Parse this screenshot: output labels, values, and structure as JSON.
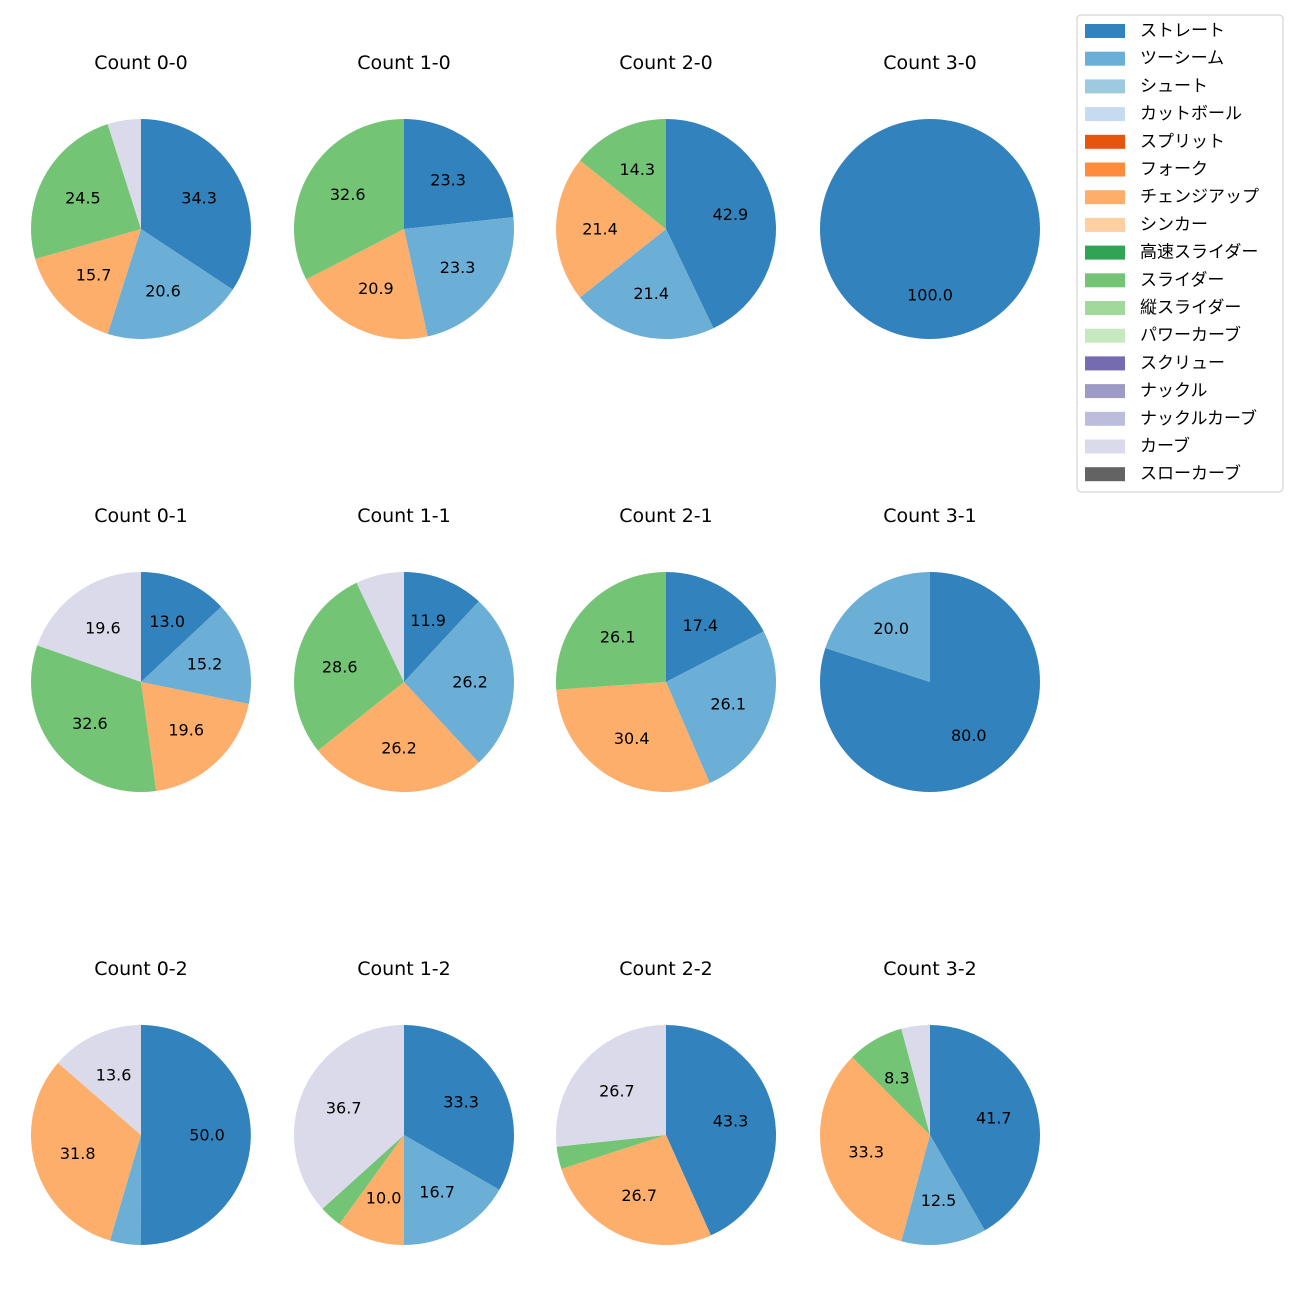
{
  "colors": {
    "ストレート": "#3182bd",
    "ツーシーム": "#6baed6",
    "シュート": "#9ecae1",
    "カットボール": "#c6dbef",
    "スプリット": "#e6550d",
    "フォーク": "#fd8d3c",
    "チェンジアップ": "#fdae6b",
    "シンカー": "#fdd0a2",
    "高速スライダー": "#31a354",
    "スライダー": "#74c476",
    "縦スライダー": "#a1d99b",
    "パワーカーブ": "#c7e9c0",
    "スクリュー": "#756bb1",
    "ナックル": "#9e9ac8",
    "ナックルカーブ": "#bcbddc",
    "カーブ": "#dadaeb",
    "スローカーブ": "#636363"
  },
  "legend": [
    "ストレート",
    "ツーシーム",
    "シュート",
    "カットボール",
    "スプリット",
    "フォーク",
    "チェンジアップ",
    "シンカー",
    "高速スライダー",
    "スライダー",
    "縦スライダー",
    "パワーカーブ",
    "スクリュー",
    "ナックル",
    "ナックルカーブ",
    "カーブ",
    "スローカーブ"
  ],
  "chart_data": [
    {
      "type": "pie",
      "title": "Count 0-0",
      "slices": [
        {
          "name": "ストレート",
          "value": 34.3,
          "label": "34.3"
        },
        {
          "name": "ツーシーム",
          "value": 20.6,
          "label": "20.6"
        },
        {
          "name": "チェンジアップ",
          "value": 15.7,
          "label": "15.7"
        },
        {
          "name": "スライダー",
          "value": 24.5,
          "label": "24.5"
        },
        {
          "name": "カーブ",
          "value": 4.9,
          "label": ""
        }
      ]
    },
    {
      "type": "pie",
      "title": "Count 1-0",
      "slices": [
        {
          "name": "ストレート",
          "value": 23.3,
          "label": "23.3"
        },
        {
          "name": "ツーシーム",
          "value": 23.3,
          "label": "23.3"
        },
        {
          "name": "チェンジアップ",
          "value": 20.9,
          "label": "20.9"
        },
        {
          "name": "スライダー",
          "value": 32.6,
          "label": "32.6"
        }
      ]
    },
    {
      "type": "pie",
      "title": "Count 2-0",
      "slices": [
        {
          "name": "ストレート",
          "value": 42.9,
          "label": "42.9"
        },
        {
          "name": "ツーシーム",
          "value": 21.4,
          "label": "21.4"
        },
        {
          "name": "チェンジアップ",
          "value": 21.4,
          "label": "21.4"
        },
        {
          "name": "スライダー",
          "value": 14.3,
          "label": "14.3"
        }
      ]
    },
    {
      "type": "pie",
      "title": "Count 3-0",
      "slices": [
        {
          "name": "ストレート",
          "value": 100.0,
          "label": "100.0"
        }
      ]
    },
    {
      "type": "pie",
      "title": "Count 0-1",
      "slices": [
        {
          "name": "ストレート",
          "value": 13.0,
          "label": "13.0"
        },
        {
          "name": "ツーシーム",
          "value": 15.2,
          "label": "15.2"
        },
        {
          "name": "チェンジアップ",
          "value": 19.6,
          "label": "19.6"
        },
        {
          "name": "スライダー",
          "value": 32.6,
          "label": "32.6"
        },
        {
          "name": "カーブ",
          "value": 19.6,
          "label": "19.6"
        }
      ]
    },
    {
      "type": "pie",
      "title": "Count 1-1",
      "slices": [
        {
          "name": "ストレート",
          "value": 11.9,
          "label": "11.9"
        },
        {
          "name": "ツーシーム",
          "value": 26.2,
          "label": "26.2"
        },
        {
          "name": "チェンジアップ",
          "value": 26.2,
          "label": "26.2"
        },
        {
          "name": "スライダー",
          "value": 28.6,
          "label": "28.6"
        },
        {
          "name": "カーブ",
          "value": 7.1,
          "label": ""
        }
      ]
    },
    {
      "type": "pie",
      "title": "Count 2-1",
      "slices": [
        {
          "name": "ストレート",
          "value": 17.4,
          "label": "17.4"
        },
        {
          "name": "ツーシーム",
          "value": 26.1,
          "label": "26.1"
        },
        {
          "name": "チェンジアップ",
          "value": 30.4,
          "label": "30.4"
        },
        {
          "name": "スライダー",
          "value": 26.1,
          "label": "26.1"
        }
      ]
    },
    {
      "type": "pie",
      "title": "Count 3-1",
      "slices": [
        {
          "name": "ストレート",
          "value": 80.0,
          "label": "80.0"
        },
        {
          "name": "ツーシーム",
          "value": 20.0,
          "label": "20.0"
        }
      ]
    },
    {
      "type": "pie",
      "title": "Count 0-2",
      "slices": [
        {
          "name": "ストレート",
          "value": 50.0,
          "label": "50.0"
        },
        {
          "name": "ツーシーム",
          "value": 4.5,
          "label": ""
        },
        {
          "name": "チェンジアップ",
          "value": 31.8,
          "label": "31.8"
        },
        {
          "name": "カーブ",
          "value": 13.6,
          "label": "13.6"
        }
      ]
    },
    {
      "type": "pie",
      "title": "Count 1-2",
      "slices": [
        {
          "name": "ストレート",
          "value": 33.3,
          "label": "33.3"
        },
        {
          "name": "ツーシーム",
          "value": 16.7,
          "label": "16.7"
        },
        {
          "name": "チェンジアップ",
          "value": 10.0,
          "label": "10.0"
        },
        {
          "name": "スライダー",
          "value": 3.3,
          "label": ""
        },
        {
          "name": "カーブ",
          "value": 36.7,
          "label": "36.7"
        }
      ]
    },
    {
      "type": "pie",
      "title": "Count 2-2",
      "slices": [
        {
          "name": "ストレート",
          "value": 43.3,
          "label": "43.3"
        },
        {
          "name": "チェンジアップ",
          "value": 26.7,
          "label": "26.7"
        },
        {
          "name": "スライダー",
          "value": 3.3,
          "label": ""
        },
        {
          "name": "カーブ",
          "value": 26.7,
          "label": "26.7"
        }
      ]
    },
    {
      "type": "pie",
      "title": "Count 3-2",
      "slices": [
        {
          "name": "ストレート",
          "value": 41.7,
          "label": "41.7"
        },
        {
          "name": "ツーシーム",
          "value": 12.5,
          "label": "12.5"
        },
        {
          "name": "チェンジアップ",
          "value": 33.3,
          "label": "33.3"
        },
        {
          "name": "スライダー",
          "value": 8.3,
          "label": "8.3"
        },
        {
          "name": "カーブ",
          "value": 4.2,
          "label": ""
        }
      ]
    }
  ]
}
